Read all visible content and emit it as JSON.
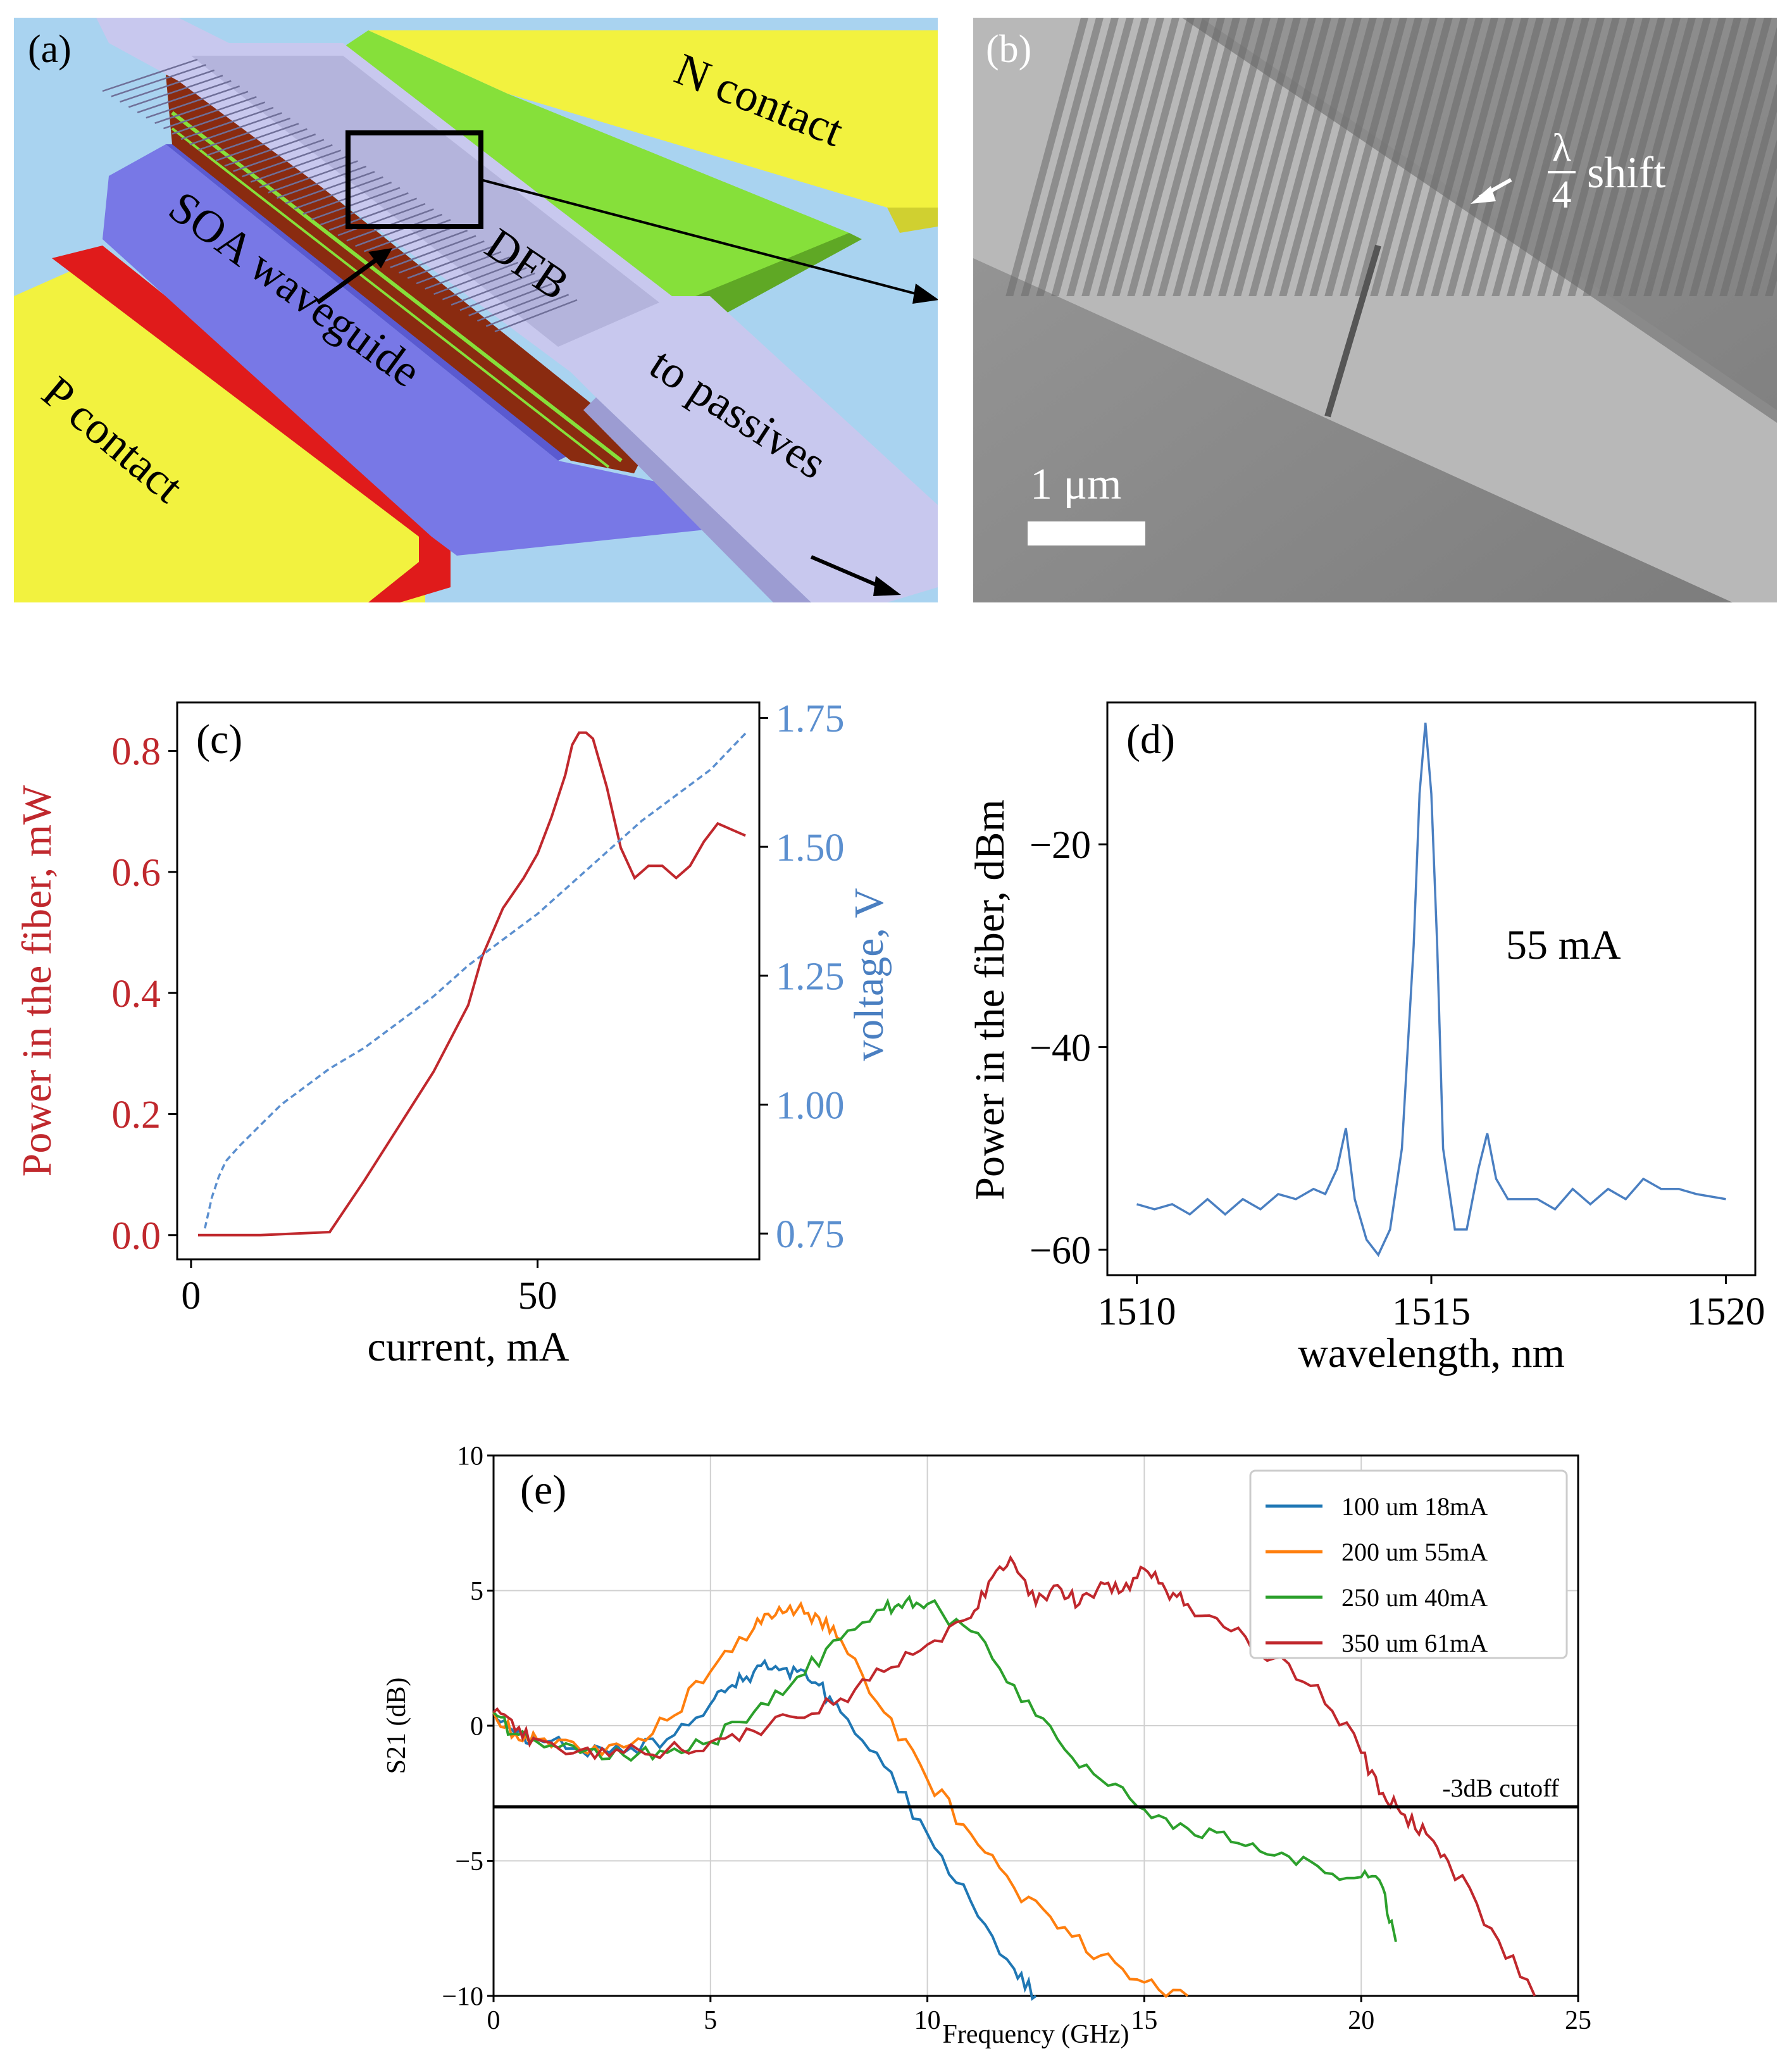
{
  "panel_a": {
    "label": "(a)",
    "n_contact": "N contact",
    "p_contact": "P contact",
    "soa_waveguide": "SOA waveguide",
    "dfb": "DFB",
    "to_passives": "to passives",
    "colors": {
      "sky": "#a9d3f0",
      "yellow": "#f2f23f",
      "green": "#86e03a",
      "blue": "#7878e6",
      "lavender": "#c8c8ee",
      "red": "#e01b1b"
    }
  },
  "panel_b": {
    "label": "(b)",
    "lambda_num": "λ",
    "lambda_den": "4",
    "shift": "shift",
    "scalebar": "1 μm"
  },
  "chart_data": [
    {
      "id": "c",
      "label": "(c)",
      "type": "line",
      "xlabel": "current, mA",
      "ylabel_left": "Power in the fiber, mW",
      "ylabel_right": "voltage, V",
      "xlim": [
        -2,
        82
      ],
      "ylim_left": [
        -0.04,
        0.88
      ],
      "ylim_right": [
        0.7,
        1.78
      ],
      "xticks": [
        {
          "v": 0,
          "t": "0"
        },
        {
          "v": 50,
          "t": "50"
        }
      ],
      "yticks_left": [
        {
          "v": 0,
          "t": "0.0"
        },
        {
          "v": 0.2,
          "t": "0.2"
        },
        {
          "v": 0.4,
          "t": "0.4"
        },
        {
          "v": 0.6,
          "t": "0.6"
        },
        {
          "v": 0.8,
          "t": "0.8"
        }
      ],
      "yticks_right": [
        {
          "v": 0.75,
          "t": "0.75"
        },
        {
          "v": 1.0,
          "t": "1.00"
        },
        {
          "v": 1.25,
          "t": "1.25"
        },
        {
          "v": 1.5,
          "t": "1.50"
        },
        {
          "v": 1.75,
          "t": "1.75"
        }
      ],
      "series": [
        {
          "name": "power",
          "axis": "left",
          "color": "#c0282d",
          "dash": false,
          "x": [
            1,
            10,
            20,
            25,
            30,
            35,
            40,
            42,
            45,
            48,
            50,
            52,
            54,
            55,
            56,
            57,
            58,
            60,
            62,
            64,
            66,
            68,
            70,
            72,
            74,
            76,
            78,
            80
          ],
          "y": [
            0.0,
            0.0,
            0.005,
            0.09,
            0.18,
            0.27,
            0.38,
            0.46,
            0.54,
            0.59,
            0.63,
            0.69,
            0.76,
            0.81,
            0.83,
            0.83,
            0.82,
            0.74,
            0.64,
            0.59,
            0.61,
            0.61,
            0.59,
            0.61,
            0.65,
            0.68,
            0.67,
            0.66
          ]
        },
        {
          "name": "voltage",
          "axis": "right",
          "color": "#5b8fcf",
          "dash": true,
          "x": [
            2,
            3,
            4,
            5,
            7,
            10,
            13,
            16,
            20,
            25,
            30,
            35,
            40,
            45,
            50,
            55,
            60,
            65,
            70,
            75,
            80
          ],
          "y": [
            0.76,
            0.82,
            0.86,
            0.89,
            0.92,
            0.96,
            1.0,
            1.03,
            1.07,
            1.11,
            1.16,
            1.21,
            1.27,
            1.32,
            1.37,
            1.43,
            1.49,
            1.55,
            1.6,
            1.65,
            1.72
          ]
        }
      ]
    },
    {
      "id": "d",
      "label": "(d)",
      "type": "line",
      "xlabel": "wavelength, nm",
      "ylabel": "Power in the fiber, dBm",
      "annotation": "55 mA",
      "xlim": [
        1509.5,
        1520.5
      ],
      "ylim": [
        -62.5,
        -6
      ],
      "xticks": [
        {
          "v": 1510,
          "t": "1510"
        },
        {
          "v": 1515,
          "t": "1515"
        },
        {
          "v": 1520,
          "t": "1520"
        }
      ],
      "yticks": [
        {
          "v": -20,
          "t": "−20"
        },
        {
          "v": -40,
          "t": "−40"
        },
        {
          "v": -60,
          "t": "−60"
        }
      ],
      "series": [
        {
          "name": "spectrum",
          "color": "#4a7fc1",
          "x": [
            1510,
            1510.3,
            1510.6,
            1510.9,
            1511.2,
            1511.5,
            1511.8,
            1512.1,
            1512.4,
            1512.7,
            1513,
            1513.2,
            1513.4,
            1513.55,
            1513.7,
            1513.9,
            1514.1,
            1514.3,
            1514.5,
            1514.7,
            1514.8,
            1514.9,
            1515.0,
            1515.1,
            1515.2,
            1515.4,
            1515.6,
            1515.8,
            1515.95,
            1516.1,
            1516.3,
            1516.5,
            1516.8,
            1517.1,
            1517.4,
            1517.7,
            1518,
            1518.3,
            1518.6,
            1518.9,
            1519.2,
            1519.5,
            1520
          ],
          "y": [
            -55.5,
            -56,
            -55.5,
            -56.5,
            -55,
            -56.5,
            -55,
            -56,
            -54.5,
            -55,
            -54,
            -54.5,
            -52,
            -48,
            -55,
            -59,
            -60.5,
            -58,
            -50,
            -30,
            -15,
            -8,
            -15,
            -30,
            -50,
            -58,
            -58,
            -52,
            -48.5,
            -53,
            -55,
            -55,
            -55,
            -56,
            -54,
            -55.5,
            -54,
            -55,
            -53,
            -54,
            -54,
            -54.5,
            -55
          ]
        }
      ]
    },
    {
      "id": "e",
      "label": "(e)",
      "type": "line",
      "xlabel": "Frequency (GHz)",
      "ylabel": "S21 (dB)",
      "xlim": [
        0,
        25
      ],
      "ylim": [
        -10,
        10
      ],
      "grid": true,
      "cutoff_db": -3,
      "cutoff_label": "-3dB cutoff",
      "legend_position": "top-right",
      "xticks": [
        {
          "v": 0,
          "t": "0"
        },
        {
          "v": 5,
          "t": "5"
        },
        {
          "v": 10,
          "t": "10"
        },
        {
          "v": 15,
          "t": "15"
        },
        {
          "v": 20,
          "t": "20"
        },
        {
          "v": 25,
          "t": "25"
        }
      ],
      "yticks": [
        {
          "v": 10,
          "t": "10"
        },
        {
          "v": 5,
          "t": "5"
        },
        {
          "v": 0,
          "t": "0"
        },
        {
          "v": -5,
          "t": "−5"
        },
        {
          "v": -10,
          "t": "−10"
        }
      ],
      "series": [
        {
          "name": "100 um 18mA",
          "color": "#1f77b4",
          "x": [
            0,
            0.5,
            1,
            2,
            3,
            4,
            5,
            5.5,
            6,
            6.5,
            7,
            7.5,
            8,
            9,
            10,
            11,
            12,
            12.5
          ],
          "y": [
            0.5,
            -0.3,
            -0.5,
            -0.9,
            -1.0,
            -0.5,
            0.8,
            1.5,
            2.0,
            2.2,
            2.0,
            1.5,
            0.5,
            -1.5,
            -4.0,
            -6.5,
            -9.0,
            -10
          ]
        },
        {
          "name": "200 um 55mA",
          "color": "#ff7f0e",
          "x": [
            0,
            0.5,
            1,
            2,
            3,
            4,
            5,
            6,
            6.5,
            7,
            7.5,
            8,
            9,
            10,
            11,
            12,
            13,
            14,
            15,
            16
          ],
          "y": [
            0.5,
            -0.3,
            -0.5,
            -0.9,
            -0.8,
            0.2,
            2.0,
            3.6,
            4.1,
            4.3,
            4.0,
            3.2,
            0.5,
            -2.0,
            -4.0,
            -6.0,
            -7.5,
            -8.5,
            -9.5,
            -10
          ]
        },
        {
          "name": "250 um 40mA",
          "color": "#2ca02c",
          "x": [
            0,
            0.5,
            1,
            2,
            3,
            4,
            5,
            6,
            7,
            8,
            9,
            9.5,
            10,
            11,
            12,
            13,
            14,
            15,
            16,
            17,
            18,
            19,
            20,
            20.5,
            20.8
          ],
          "y": [
            0.5,
            -0.3,
            -0.6,
            -1.0,
            -1.1,
            -1.0,
            -0.6,
            0.5,
            1.8,
            3.2,
            4.3,
            4.6,
            4.5,
            3.5,
            1.5,
            -0.5,
            -2.0,
            -3.1,
            -3.8,
            -4.3,
            -4.8,
            -5.2,
            -5.6,
            -6.0,
            -8.0
          ]
        },
        {
          "name": "350 um 61mA",
          "color": "#c0282d",
          "x": [
            0,
            0.5,
            1,
            2,
            3,
            4,
            5,
            6,
            7,
            8,
            9,
            10,
            11,
            11.5,
            12,
            12.5,
            13,
            13.5,
            14,
            14.5,
            15,
            15.5,
            16,
            17,
            18,
            19,
            20,
            20.5,
            21,
            21.5,
            22,
            23,
            24
          ],
          "y": [
            0.5,
            -0.2,
            -0.5,
            -0.9,
            -1.0,
            -0.9,
            -0.6,
            -0.2,
            0.3,
            1.0,
            2.0,
            3.0,
            4.0,
            5.5,
            6.0,
            4.5,
            5.2,
            4.5,
            5.3,
            5.0,
            5.8,
            5.0,
            4.5,
            3.5,
            2.5,
            1.5,
            -1.0,
            -2.5,
            -3.3,
            -4.0,
            -5.0,
            -7.5,
            -10
          ]
        }
      ]
    }
  ]
}
